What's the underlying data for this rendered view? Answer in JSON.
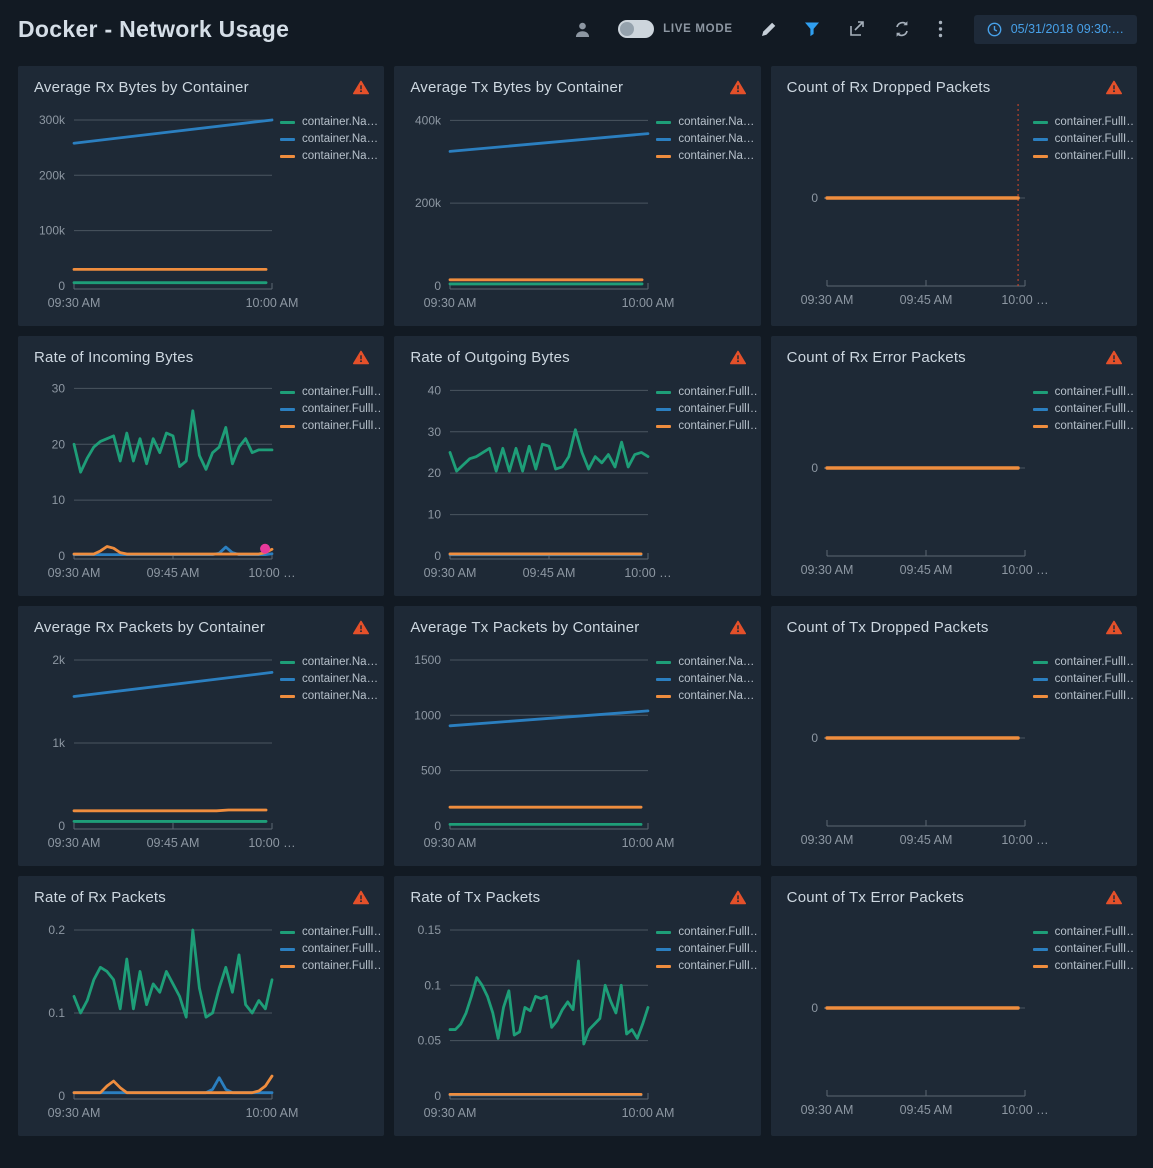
{
  "header": {
    "title": "Docker - Network Usage",
    "live_mode_label": "LIVE MODE",
    "datetime": "05/31/2018 09:30:…"
  },
  "colors": {
    "page_bg": "#121a23",
    "panel_bg": "#1e2936",
    "accent_blue": "#2f9ff0",
    "series_green": "#1e9e78",
    "series_blue": "#2b7fc0",
    "series_orange": "#ef8d3e",
    "marker_magenta": "#e8399b",
    "warning": "#e4502a",
    "date_blue": "#47a0e8"
  },
  "icons": {
    "toolbar": [
      "user-icon",
      "live-mode-toggle",
      "edit-icon",
      "filter-icon",
      "export-icon",
      "refresh-icon",
      "more-menu-icon",
      "clock-icon"
    ],
    "panel": "warning-icon"
  },
  "panels": [
    {
      "title": "Average Rx Bytes by Container",
      "chart_data": {
        "type": "line",
        "x_labels": [
          "09:30 AM",
          "10:00 AM"
        ],
        "ylim": [
          0,
          318000
        ],
        "yticks": [
          {
            "v": 300000,
            "label": "300k"
          },
          {
            "v": 200000,
            "label": "200k"
          },
          {
            "v": 100000,
            "label": "100k"
          },
          {
            "v": 0,
            "label": "0"
          }
        ],
        "series": [
          {
            "name": "container.Na…",
            "color": "#1e9e78",
            "values": [
              6000,
              6000
            ],
            "x": [
              0,
              0.97
            ]
          },
          {
            "name": "container.Na…",
            "color": "#2b7fc0",
            "values": [
              258000,
              300000
            ]
          },
          {
            "name": "container.Na…",
            "color": "#ef8d3e",
            "values": [
              30000,
              30000
            ],
            "x": [
              0,
              0.97
            ]
          }
        ]
      }
    },
    {
      "title": "Average Tx Bytes by Container",
      "chart_data": {
        "type": "line",
        "x_labels": [
          "09:30 AM",
          "10:00 AM"
        ],
        "ylim": [
          0,
          425000
        ],
        "yticks": [
          {
            "v": 400000,
            "label": "400k"
          },
          {
            "v": 200000,
            "label": "200k"
          },
          {
            "v": 0,
            "label": "0"
          }
        ],
        "series": [
          {
            "name": "container.Na…",
            "color": "#1e9e78",
            "values": [
              5000,
              5000
            ],
            "x": [
              0,
              0.97
            ]
          },
          {
            "name": "container.Na…",
            "color": "#2b7fc0",
            "values": [
              325000,
              368000
            ]
          },
          {
            "name": "container.Na…",
            "color": "#ef8d3e",
            "values": [
              15000,
              15000
            ],
            "x": [
              0,
              0.97
            ]
          }
        ]
      }
    },
    {
      "title": "Count of Rx Dropped Packets",
      "chart_data": {
        "type": "line",
        "x_labels": [
          "09:30 AM",
          "09:45 AM",
          "10:00 …"
        ],
        "ylim": [
          -1,
          1
        ],
        "yticks": [
          {
            "v": 0,
            "label": "0"
          }
        ],
        "vline": {
          "x": 0.965,
          "color": "#dd4a2a"
        },
        "series": [
          {
            "name": "container.FullI…",
            "color": "#1e9e78",
            "values": [
              0,
              0
            ],
            "x": [
              0,
              0.965
            ]
          },
          {
            "name": "container.FullI…",
            "color": "#2b7fc0",
            "values": [
              0,
              0
            ],
            "x": [
              0,
              0.965
            ]
          },
          {
            "name": "container.FullI…",
            "color": "#ef8d3e",
            "values": [
              0,
              0
            ],
            "x": [
              0,
              0.965
            ],
            "width": 3.4
          }
        ]
      }
    },
    {
      "title": "Rate of Incoming Bytes",
      "chart_data": {
        "type": "line",
        "x_labels": [
          "09:30 AM",
          "09:45 AM",
          "10:00 …"
        ],
        "ylim": [
          0,
          31.5
        ],
        "yticks": [
          {
            "v": 30,
            "label": "30"
          },
          {
            "v": 20,
            "label": "20"
          },
          {
            "v": 10,
            "label": "10"
          },
          {
            "v": 0,
            "label": "0"
          }
        ],
        "marker": {
          "x": 0.965,
          "y": 1.3,
          "color": "#e8399b"
        },
        "series": [
          {
            "name": "container.FullI…",
            "color": "#1e9e78",
            "values": [
              20,
              15,
              17.5,
              19.5,
              20.5,
              21,
              21.5,
              17,
              22,
              17,
              21,
              16.5,
              21,
              18.5,
              22,
              21.5,
              16,
              17,
              26,
              18,
              15.5,
              18.5,
              19.5,
              23,
              16.5,
              19.5,
              21,
              18.5,
              19,
              19,
              19
            ]
          },
          {
            "name": "container.FullI…",
            "color": "#2b7fc0",
            "values": [
              0.25,
              0.25,
              0.25,
              0.25,
              0.25,
              0.25,
              0.25,
              0.25,
              0.25,
              0.25,
              0.25,
              0.25,
              0.25,
              0.25,
              0.25,
              0.25,
              0.25,
              0.25,
              0.25,
              0.25,
              0.25,
              0.25,
              0.5,
              1.6,
              0.6,
              0.25,
              0.25,
              0.25,
              0.25,
              0.25,
              0.4
            ]
          },
          {
            "name": "container.FullI…",
            "color": "#ef8d3e",
            "values": [
              0.35,
              0.35,
              0.35,
              0.35,
              0.9,
              1.7,
              1.4,
              0.6,
              0.35,
              0.35,
              0.35,
              0.35,
              0.35,
              0.35,
              0.35,
              0.35,
              0.35,
              0.35,
              0.35,
              0.35,
              0.35,
              0.35,
              0.35,
              0.35,
              0.35,
              0.35,
              0.35,
              0.35,
              0.35,
              0.6,
              1.2
            ]
          }
        ]
      }
    },
    {
      "title": "Rate of Outgoing Bytes",
      "chart_data": {
        "type": "line",
        "x_labels": [
          "09:30 AM",
          "09:45 AM",
          "10:00 …"
        ],
        "ylim": [
          0,
          42.5
        ],
        "yticks": [
          {
            "v": 40,
            "label": "40"
          },
          {
            "v": 30,
            "label": "30"
          },
          {
            "v": 20,
            "label": "20"
          },
          {
            "v": 10,
            "label": "10"
          },
          {
            "v": 0,
            "label": "0"
          }
        ],
        "series": [
          {
            "name": "container.FullI…",
            "color": "#1e9e78",
            "values": [
              25,
              20.5,
              22,
              23.5,
              24,
              25,
              26,
              20.5,
              26,
              20.5,
              26,
              20.5,
              26.5,
              21,
              27,
              26.5,
              21,
              21.5,
              24,
              30.5,
              25,
              21,
              24,
              22.5,
              24.5,
              21.5,
              27.5,
              21.5,
              24.5,
              25,
              24
            ]
          },
          {
            "name": "container.FullI…",
            "color": "#2b7fc0",
            "values": [
              0.3,
              0.3
            ],
            "x": [
              0,
              0.965
            ]
          },
          {
            "name": "container.FullI…",
            "color": "#ef8d3e",
            "values": [
              0.5,
              0.5
            ],
            "x": [
              0,
              0.965
            ]
          }
        ]
      }
    },
    {
      "title": "Count of Rx Error Packets",
      "chart_data": {
        "type": "line",
        "x_labels": [
          "09:30 AM",
          "09:45 AM",
          "10:00 …"
        ],
        "ylim": [
          -1,
          1
        ],
        "yticks": [
          {
            "v": 0,
            "label": "0"
          }
        ],
        "series": [
          {
            "name": "container.FullI…",
            "color": "#1e9e78",
            "values": [
              0,
              0
            ],
            "x": [
              0,
              0.965
            ]
          },
          {
            "name": "container.FullI…",
            "color": "#2b7fc0",
            "values": [
              0,
              0
            ],
            "x": [
              0,
              0.965
            ]
          },
          {
            "name": "container.FullI…",
            "color": "#ef8d3e",
            "values": [
              0,
              0
            ],
            "x": [
              0,
              0.965
            ],
            "width": 3.4
          }
        ]
      }
    },
    {
      "title": "Average Rx Packets by Container",
      "chart_data": {
        "type": "line",
        "x_labels": [
          "09:30 AM",
          "09:45 AM",
          "10:00 …"
        ],
        "ylim": [
          0,
          2120
        ],
        "yticks": [
          {
            "v": 2000,
            "label": "2k"
          },
          {
            "v": 1000,
            "label": "1k"
          },
          {
            "v": 0,
            "label": "0"
          }
        ],
        "series": [
          {
            "name": "container.Na…",
            "color": "#1e9e78",
            "values": [
              55,
              55
            ],
            "x": [
              0,
              0.97
            ]
          },
          {
            "name": "container.Na…",
            "color": "#2b7fc0",
            "values": [
              1560,
              1850
            ]
          },
          {
            "name": "container.Na…",
            "color": "#ef8d3e",
            "values": [
              183,
              183,
              183,
              193,
              193
            ],
            "x": [
              0,
              0.6,
              0.72,
              0.78,
              0.97
            ]
          }
        ]
      }
    },
    {
      "title": "Average Tx Packets by Container",
      "chart_data": {
        "type": "line",
        "x_labels": [
          "09:30 AM",
          "10:00 AM"
        ],
        "ylim": [
          0,
          1590
        ],
        "yticks": [
          {
            "v": 1500,
            "label": "1500"
          },
          {
            "v": 1000,
            "label": "1000"
          },
          {
            "v": 500,
            "label": "500"
          },
          {
            "v": 0,
            "label": "0"
          }
        ],
        "series": [
          {
            "name": "container.Na…",
            "color": "#1e9e78",
            "values": [
              15,
              15
            ],
            "x": [
              0,
              0.965
            ]
          },
          {
            "name": "container.Na…",
            "color": "#2b7fc0",
            "values": [
              905,
              1040
            ]
          },
          {
            "name": "container.Na…",
            "color": "#ef8d3e",
            "values": [
              170,
              170
            ],
            "x": [
              0,
              0.965
            ]
          }
        ]
      }
    },
    {
      "title": "Count of Tx Dropped Packets",
      "chart_data": {
        "type": "line",
        "x_labels": [
          "09:30 AM",
          "09:45 AM",
          "10:00 …"
        ],
        "ylim": [
          -1,
          1
        ],
        "yticks": [
          {
            "v": 0,
            "label": "0"
          }
        ],
        "series": [
          {
            "name": "container.FullI…",
            "color": "#1e9e78",
            "values": [
              0,
              0
            ],
            "x": [
              0,
              0.965
            ]
          },
          {
            "name": "container.FullI…",
            "color": "#2b7fc0",
            "values": [
              0,
              0
            ],
            "x": [
              0,
              0.965
            ]
          },
          {
            "name": "container.FullI…",
            "color": "#ef8d3e",
            "values": [
              0,
              0
            ],
            "x": [
              0,
              0.965
            ],
            "width": 3.4
          }
        ]
      }
    },
    {
      "title": "Rate of Rx Packets",
      "chart_data": {
        "type": "line",
        "x_labels": [
          "09:30 AM",
          "10:00 AM"
        ],
        "ylim": [
          0,
          0.212
        ],
        "yticks": [
          {
            "v": 0.2,
            "label": "0.2"
          },
          {
            "v": 0.1,
            "label": "0.1"
          },
          {
            "v": 0,
            "label": "0"
          }
        ],
        "series": [
          {
            "name": "container.FullI…",
            "color": "#1e9e78",
            "values": [
              0.12,
              0.1,
              0.115,
              0.14,
              0.155,
              0.15,
              0.14,
              0.105,
              0.165,
              0.105,
              0.15,
              0.11,
              0.135,
              0.125,
              0.15,
              0.135,
              0.12,
              0.095,
              0.2,
              0.13,
              0.095,
              0.1,
              0.13,
              0.155,
              0.125,
              0.17,
              0.11,
              0.1,
              0.115,
              0.105,
              0.14
            ]
          },
          {
            "name": "container.FullI…",
            "color": "#2b7fc0",
            "values": [
              0.004,
              0.004,
              0.004,
              0.004,
              0.004,
              0.004,
              0.004,
              0.004,
              0.004,
              0.004,
              0.004,
              0.004,
              0.004,
              0.004,
              0.004,
              0.004,
              0.004,
              0.004,
              0.004,
              0.004,
              0.004,
              0.008,
              0.022,
              0.008,
              0.004,
              0.004,
              0.004,
              0.004,
              0.004,
              0.004,
              0.004
            ]
          },
          {
            "name": "container.FullI…",
            "color": "#ef8d3e",
            "values": [
              0.004,
              0.004,
              0.004,
              0.004,
              0.004,
              0.012,
              0.018,
              0.01,
              0.004,
              0.004,
              0.004,
              0.004,
              0.004,
              0.004,
              0.004,
              0.004,
              0.004,
              0.004,
              0.004,
              0.004,
              0.004,
              0.004,
              0.004,
              0.004,
              0.004,
              0.004,
              0.004,
              0.004,
              0.006,
              0.012,
              0.024
            ]
          }
        ]
      }
    },
    {
      "title": "Rate of Tx Packets",
      "chart_data": {
        "type": "line",
        "x_labels": [
          "09:30 AM",
          "10:00 AM"
        ],
        "ylim": [
          0,
          0.159
        ],
        "yticks": [
          {
            "v": 0.15,
            "label": "0.15"
          },
          {
            "v": 0.1,
            "label": "0.1"
          },
          {
            "v": 0.05,
            "label": "0.05"
          },
          {
            "v": 0,
            "label": "0"
          }
        ],
        "series": [
          {
            "name": "container.FullI…",
            "color": "#1e9e78",
            "values": [
              0.06,
              0.06,
              0.065,
              0.075,
              0.09,
              0.107,
              0.1,
              0.09,
              0.075,
              0.052,
              0.08,
              0.095,
              0.055,
              0.058,
              0.08,
              0.077,
              0.09,
              0.088,
              0.09,
              0.062,
              0.068,
              0.078,
              0.085,
              0.078,
              0.122,
              0.047,
              0.06,
              0.065,
              0.07,
              0.1,
              0.086,
              0.075,
              0.1,
              0.056,
              0.06,
              0.052,
              0.065,
              0.08
            ]
          },
          {
            "name": "container.FullI…",
            "color": "#2b7fc0",
            "values": [
              0.001,
              0.001
            ],
            "x": [
              0,
              0.965
            ]
          },
          {
            "name": "container.FullI…",
            "color": "#ef8d3e",
            "values": [
              0.0015,
              0.0015
            ],
            "x": [
              0,
              0.965
            ]
          }
        ]
      }
    },
    {
      "title": "Count of Tx Error Packets",
      "chart_data": {
        "type": "line",
        "x_labels": [
          "09:30 AM",
          "09:45 AM",
          "10:00 …"
        ],
        "ylim": [
          -1,
          1
        ],
        "yticks": [
          {
            "v": 0,
            "label": "0"
          }
        ],
        "series": [
          {
            "name": "container.FullI…",
            "color": "#1e9e78",
            "values": [
              0,
              0
            ],
            "x": [
              0,
              0.965
            ]
          },
          {
            "name": "container.FullI…",
            "color": "#2b7fc0",
            "values": [
              0,
              0
            ],
            "x": [
              0,
              0.965
            ]
          },
          {
            "name": "container.FullI…",
            "color": "#ef8d3e",
            "values": [
              0,
              0
            ],
            "x": [
              0,
              0.965
            ],
            "width": 3.4
          }
        ]
      }
    }
  ]
}
